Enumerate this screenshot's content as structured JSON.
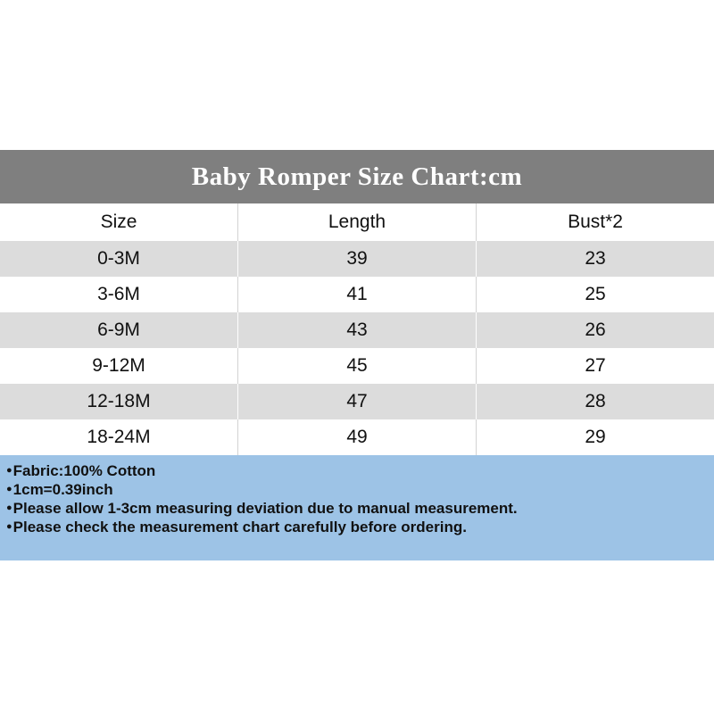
{
  "colors": {
    "page-bg": "#ffffff",
    "header-bar": "#7f7f7f",
    "header-text": "#ffffff",
    "row-stripe": "#dcdcdc",
    "row-separator": "#d3d3d3",
    "notes-bg": "#9dc3e6",
    "text": "#111111"
  },
  "title_bar": {
    "text": "Baby Romper Size Chart:cm"
  },
  "table": {
    "headers": [
      "Size",
      "Length",
      "Bust*2"
    ],
    "rows": [
      {
        "cells": [
          "0-3M",
          "39",
          "23"
        ]
      },
      {
        "cells": [
          "3-6M",
          "41",
          "25"
        ]
      },
      {
        "cells": [
          "6-9M",
          "43",
          "26"
        ]
      },
      {
        "cells": [
          "9-12M",
          "45",
          "27"
        ]
      },
      {
        "cells": [
          "12-18M",
          "47",
          "28"
        ]
      },
      {
        "cells": [
          "18-24M",
          "49",
          "29"
        ]
      }
    ]
  },
  "notes": {
    "bullet": "●",
    "lines": [
      "Fabric:100% Cotton",
      "1cm=0.39inch",
      "Please allow 1-3cm measuring deviation due to manual measurement.",
      "Please check the measurement chart carefully before ordering."
    ]
  },
  "chart_data": {
    "type": "table",
    "title": "Baby Romper Size Chart:cm",
    "units": "cm",
    "columns": [
      "Size",
      "Length",
      "Bust*2"
    ],
    "rows": [
      [
        "0-3M",
        39,
        23
      ],
      [
        "3-6M",
        41,
        25
      ],
      [
        "6-9M",
        43,
        26
      ],
      [
        "9-12M",
        45,
        27
      ],
      [
        "12-18M",
        47,
        28
      ],
      [
        "18-24M",
        49,
        29
      ]
    ],
    "notes": [
      "Fabric:100% Cotton",
      "1cm=0.39inch",
      "Please allow 1-3cm measuring deviation due to manual measurement.",
      "Please check the measurement chart carefully before ordering."
    ]
  }
}
